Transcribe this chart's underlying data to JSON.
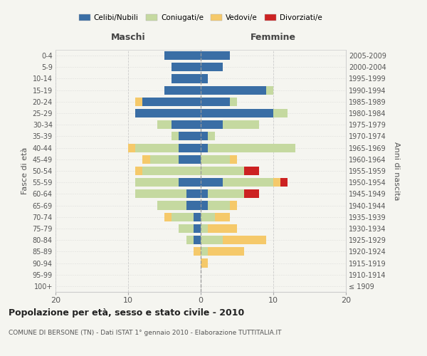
{
  "age_groups": [
    "100+",
    "95-99",
    "90-94",
    "85-89",
    "80-84",
    "75-79",
    "70-74",
    "65-69",
    "60-64",
    "55-59",
    "50-54",
    "45-49",
    "40-44",
    "35-39",
    "30-34",
    "25-29",
    "20-24",
    "15-19",
    "10-14",
    "5-9",
    "0-4"
  ],
  "birth_years": [
    "≤ 1909",
    "1910-1914",
    "1915-1919",
    "1920-1924",
    "1925-1929",
    "1930-1934",
    "1935-1939",
    "1940-1944",
    "1945-1949",
    "1950-1954",
    "1955-1959",
    "1960-1964",
    "1965-1969",
    "1970-1974",
    "1975-1979",
    "1980-1984",
    "1985-1989",
    "1990-1994",
    "1995-1999",
    "2000-2004",
    "2005-2009"
  ],
  "males": {
    "celibi": [
      0,
      0,
      0,
      0,
      1,
      1,
      1,
      2,
      2,
      3,
      0,
      3,
      3,
      3,
      4,
      9,
      8,
      5,
      4,
      4,
      5
    ],
    "coniugati": [
      0,
      0,
      0,
      0,
      1,
      2,
      3,
      4,
      7,
      6,
      8,
      4,
      6,
      1,
      2,
      0,
      0,
      0,
      0,
      0,
      0
    ],
    "vedovi": [
      0,
      0,
      0,
      1,
      0,
      0,
      1,
      0,
      0,
      0,
      1,
      1,
      1,
      0,
      0,
      0,
      1,
      0,
      0,
      0,
      0
    ],
    "divorziati": [
      0,
      0,
      0,
      0,
      0,
      0,
      0,
      0,
      0,
      0,
      0,
      0,
      0,
      0,
      0,
      0,
      0,
      0,
      0,
      0,
      0
    ]
  },
  "females": {
    "nubili": [
      0,
      0,
      0,
      0,
      0,
      0,
      0,
      1,
      1,
      3,
      0,
      0,
      1,
      1,
      3,
      10,
      4,
      9,
      1,
      3,
      4
    ],
    "coniugate": [
      0,
      0,
      0,
      1,
      3,
      1,
      2,
      3,
      5,
      7,
      6,
      4,
      12,
      1,
      5,
      2,
      1,
      1,
      0,
      0,
      0
    ],
    "vedove": [
      0,
      0,
      1,
      5,
      6,
      4,
      2,
      1,
      0,
      1,
      0,
      1,
      0,
      0,
      0,
      0,
      0,
      0,
      0,
      0,
      0
    ],
    "divorziate": [
      0,
      0,
      0,
      0,
      0,
      0,
      0,
      0,
      2,
      1,
      2,
      0,
      0,
      0,
      0,
      0,
      0,
      0,
      0,
      0,
      0
    ]
  },
  "colors": {
    "celibi_nubili": "#3A6EA5",
    "coniugati": "#C5D9A0",
    "vedovi": "#F5C96A",
    "divorziati": "#CC2222"
  },
  "title": "Popolazione per età, sesso e stato civile - 2010",
  "subtitle": "COMUNE DI BERSONE (TN) - Dati ISTAT 1° gennaio 2010 - Elaborazione TUTTITALIA.IT",
  "xlabel_left": "Maschi",
  "xlabel_right": "Femmine",
  "ylabel_left": "Fasce di età",
  "ylabel_right": "Anni di nascita",
  "xlim": 20,
  "background_color": "#f5f5f0",
  "legend_labels": [
    "Celibi/Nubili",
    "Coniugati/e",
    "Vedovi/e",
    "Divorziati/e"
  ]
}
